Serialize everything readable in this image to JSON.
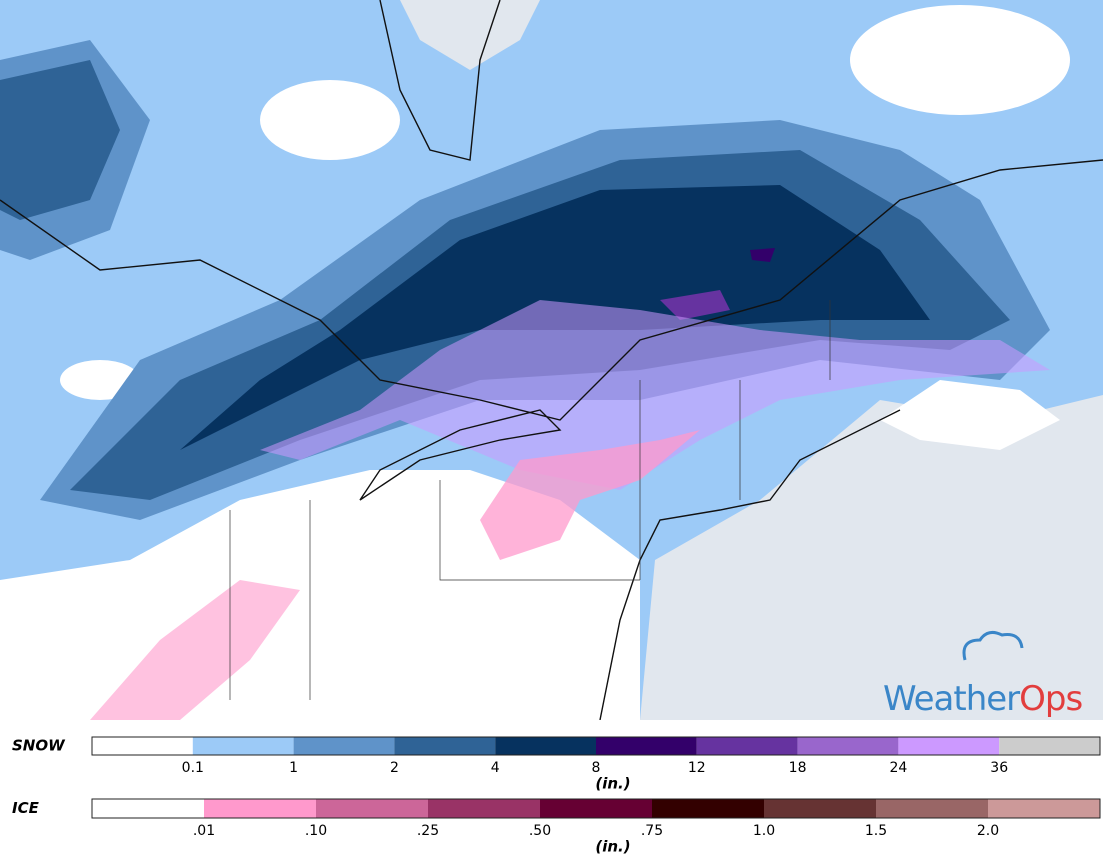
{
  "logo": {
    "parts": [
      "Weather",
      "Ops"
    ]
  },
  "legends": [
    {
      "label": "SNOW",
      "unit": "(in.)",
      "colors": [
        "#ffffff",
        "#9ccaf7",
        "#5f93c9",
        "#2f6396",
        "#06325f",
        "#33006a",
        "#6633a0",
        "#9966cc",
        "#cc99ff",
        "#cccccc"
      ],
      "ticks": [
        "0.1",
        "1",
        "2",
        "4",
        "8",
        "12",
        "18",
        "24",
        "36"
      ]
    },
    {
      "label": "ICE",
      "unit": "(in.)",
      "colors": [
        "#ffffff",
        "#ff99cc",
        "#cc6699",
        "#993366",
        "#660033",
        "#330000",
        "#663333",
        "#996666",
        "#cc9999"
      ],
      "ticks": [
        ".01",
        ".10",
        ".25",
        ".50",
        ".75",
        "1.0",
        "1.5",
        "2.0"
      ]
    }
  ]
}
